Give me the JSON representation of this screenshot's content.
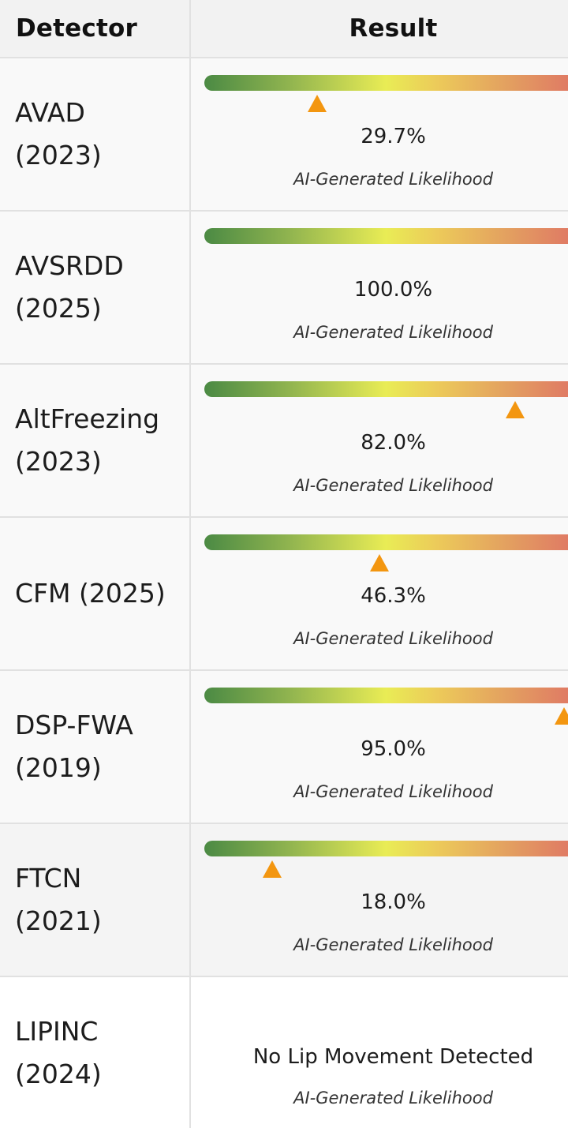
{
  "header": {
    "detector_label": "Detector",
    "result_label": "Result"
  },
  "colors": {
    "marker": "#f39610",
    "bar_start": "#4b8a44",
    "bar_mid": "#e9ec55",
    "bar_end": "#df7265"
  },
  "rows": [
    {
      "detector": "AVAD\n(2023)",
      "percent": "29.7%",
      "likelihood_label": "AI-Generated Likelihood",
      "marker_fraction": 0.297
    },
    {
      "detector": "AVSRDD\n(2025)",
      "percent": "100.0%",
      "likelihood_label": "AI-Generated Likelihood",
      "marker_fraction": 1.0
    },
    {
      "detector": "AltFreezing\n(2023)",
      "percent": "82.0%",
      "likelihood_label": "AI-Generated Likelihood",
      "marker_fraction": 0.82
    },
    {
      "detector": "CFM (2025)",
      "percent": "46.3%",
      "likelihood_label": "AI-Generated Likelihood",
      "marker_fraction": 0.463
    },
    {
      "detector": "DSP-FWA\n(2019)",
      "percent": "95.0%",
      "likelihood_label": "AI-Generated Likelihood",
      "marker_fraction": 0.95
    },
    {
      "detector": "FTCN\n(2021)",
      "percent": "18.0%",
      "likelihood_label": "AI-Generated Likelihood",
      "marker_fraction": 0.18
    },
    {
      "detector": "LIPINC\n(2024)",
      "percent": "No Lip Movement Detected",
      "likelihood_label": "AI-Generated Likelihood",
      "marker_fraction": null
    }
  ]
}
